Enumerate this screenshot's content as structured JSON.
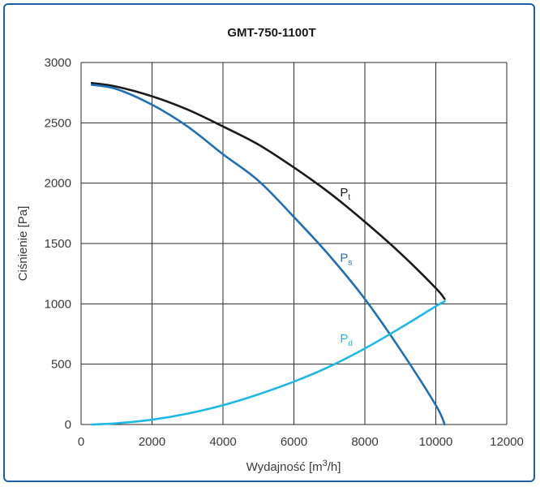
{
  "chart_data": {
    "type": "line",
    "title": "GMT-750-1100T",
    "xlabel": "Wydajność [m",
    "xlabel_sup": "3",
    "xlabel_end": "/h]",
    "ylabel": "Ciśnienie [Pa]",
    "xlim": [
      0,
      12000
    ],
    "ylim": [
      0,
      3000
    ],
    "xticks": [
      0,
      2000,
      4000,
      6000,
      8000,
      10000,
      12000
    ],
    "yticks": [
      0,
      500,
      1000,
      1500,
      2000,
      2500,
      3000
    ],
    "grid": true,
    "series": [
      {
        "name": "P",
        "subscript": "t",
        "color": "#1a1a1a",
        "label_at": [
          7300,
          1890
        ],
        "x": [
          300,
          1000,
          2000,
          3000,
          4000,
          5000,
          6000,
          7000,
          8000,
          9000,
          10000,
          10250
        ],
        "y": [
          2830,
          2800,
          2720,
          2610,
          2470,
          2320,
          2130,
          1920,
          1680,
          1420,
          1130,
          1040
        ]
      },
      {
        "name": "P",
        "subscript": "s",
        "color": "#1f6fb5",
        "label_at": [
          7300,
          1350
        ],
        "x": [
          300,
          1000,
          2000,
          3000,
          4000,
          5000,
          6000,
          7000,
          8000,
          9000,
          10000,
          10250
        ],
        "y": [
          2815,
          2780,
          2650,
          2470,
          2240,
          2020,
          1720,
          1400,
          1040,
          620,
          160,
          0
        ]
      },
      {
        "name": "P",
        "subscript": "d",
        "color": "#1eb8e6",
        "label_at": [
          7300,
          680
        ],
        "x": [
          300,
          1000,
          2000,
          3000,
          4000,
          5000,
          6000,
          7000,
          8000,
          9000,
          10000,
          10250
        ],
        "y": [
          0,
          10,
          40,
          90,
          160,
          250,
          355,
          480,
          630,
          800,
          980,
          1020
        ]
      }
    ]
  }
}
